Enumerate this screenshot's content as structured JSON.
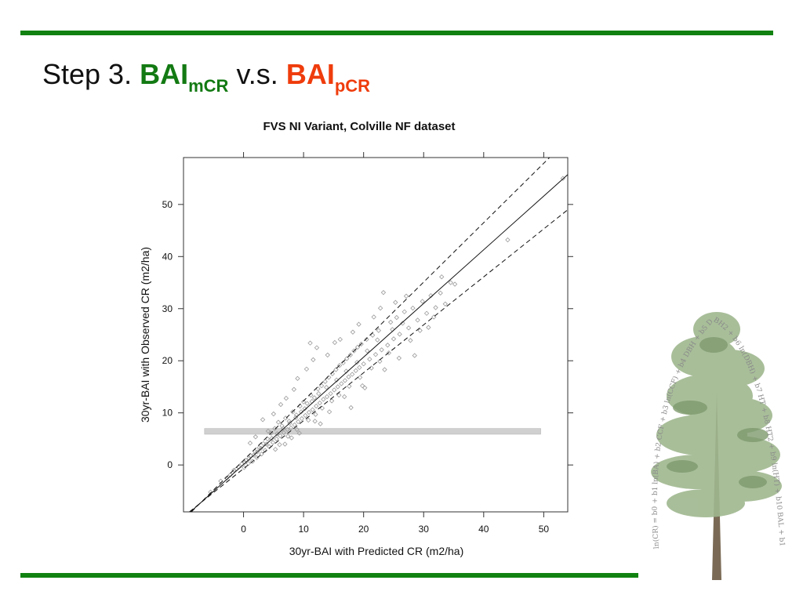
{
  "slide": {
    "title_prefix": "Step 3.",
    "title_term1_main": "BAI",
    "title_term1_sub": "mCR",
    "title_connector": "v.s.",
    "title_term2_main": "BAI",
    "title_term2_sub": "pCR",
    "term1_color": "#137a13",
    "term2_color": "#ef3c0c",
    "accent_bar_color": "#118211"
  },
  "tree_image": {
    "icon": "pine-tree-illustration-icon",
    "formula_text": "ln(CR) = b0 + b1 ln(BA) + b2 CCF + b3 ln(CCF) + b4 DBH + b5 DBH2 + b6 ln(DBH) + b7 HT + b8 HT2 + b9 ln(HT) + b10 BAL + b11 ln(BAL) + b12 ln(DBH/HT)"
  },
  "chart_data": {
    "type": "scatter",
    "title": "FVS NI Variant, Colville NF dataset",
    "xlabel": "30yr-BAI with Predicted CR (m2/ha)",
    "ylabel": "30yr-BAI with Observed CR (m2/ha)",
    "xlim": [
      -10,
      54
    ],
    "ylim": [
      -9,
      59
    ],
    "xticks": [
      0,
      10,
      20,
      30,
      40,
      50
    ],
    "yticks": [
      0,
      10,
      20,
      30,
      40,
      50
    ],
    "grid": false,
    "point_color": "#9a9a9a",
    "fit_line": {
      "slope": 1.03,
      "intercept": 0.1
    },
    "confidence_upper": {
      "intercept": 0.9,
      "slope": 1.14
    },
    "confidence_lower": {
      "intercept": -0.7,
      "slope": 0.92
    },
    "band": {
      "x": [
        -6.5,
        49.5
      ],
      "y": [
        5.9,
        7.0
      ],
      "color": "#d0d0d0"
    },
    "points": [
      [
        -5.5,
        -5.2
      ],
      [
        -3.8,
        -3.1
      ],
      [
        -2.2,
        -1.9
      ],
      [
        -1.6,
        -1.0
      ],
      [
        -0.8,
        -0.4
      ],
      [
        -0.3,
        0.2
      ],
      [
        0.1,
        -0.5
      ],
      [
        0.4,
        0.9
      ],
      [
        0.8,
        0.3
      ],
      [
        1.2,
        1.8
      ],
      [
        1.5,
        0.7
      ],
      [
        1.9,
        2.6
      ],
      [
        2.2,
        1.4
      ],
      [
        2.6,
        3.3
      ],
      [
        3.0,
        2.1
      ],
      [
        3.3,
        4.1
      ],
      [
        3.6,
        2.8
      ],
      [
        4.0,
        5.0
      ],
      [
        4.3,
        3.5
      ],
      [
        4.6,
        6.1
      ],
      [
        4.9,
        4.3
      ],
      [
        5.2,
        7.0
      ],
      [
        5.5,
        5.0
      ],
      [
        5.8,
        8.2
      ],
      [
        6.1,
        5.6
      ],
      [
        6.4,
        7.5
      ],
      [
        6.7,
        6.2
      ],
      [
        7.0,
        9.0
      ],
      [
        7.3,
        6.8
      ],
      [
        7.6,
        8.4
      ],
      [
        7.9,
        7.1
      ],
      [
        8.2,
        10.2
      ],
      [
        8.5,
        7.7
      ],
      [
        8.8,
        9.6
      ],
      [
        9.1,
        8.3
      ],
      [
        9.4,
        11.3
      ],
      [
        9.7,
        8.9
      ],
      [
        10.0,
        12.1
      ],
      [
        10.3,
        9.5
      ],
      [
        10.6,
        11.8
      ],
      [
        10.9,
        10.1
      ],
      [
        11.2,
        13.4
      ],
      [
        11.5,
        10.6
      ],
      [
        11.8,
        12.9
      ],
      [
        12.1,
        11.3
      ],
      [
        12.4,
        14.6
      ],
      [
        12.7,
        11.9
      ],
      [
        13.0,
        15.2
      ],
      [
        13.3,
        12.6
      ],
      [
        13.6,
        16.0
      ],
      [
        13.9,
        13.1
      ],
      [
        14.2,
        16.8
      ],
      [
        14.5,
        13.7
      ],
      [
        14.8,
        17.5
      ],
      [
        15.1,
        14.4
      ],
      [
        15.4,
        18.3
      ],
      [
        15.7,
        15.0
      ],
      [
        16.0,
        19.1
      ],
      [
        16.3,
        15.6
      ],
      [
        16.6,
        19.6
      ],
      [
        16.9,
        16.2
      ],
      [
        17.2,
        20.4
      ],
      [
        17.5,
        16.9
      ],
      [
        17.8,
        21.1
      ],
      [
        18.1,
        17.4
      ],
      [
        18.4,
        21.9
      ],
      [
        18.7,
        18.1
      ],
      [
        19.0,
        22.6
      ],
      [
        19.3,
        18.7
      ],
      [
        19.6,
        23.2
      ],
      [
        20.0,
        19.4
      ],
      [
        20.5,
        24.1
      ],
      [
        21.0,
        20.3
      ],
      [
        21.5,
        24.9
      ],
      [
        22.0,
        21.2
      ],
      [
        22.5,
        25.8
      ],
      [
        23.0,
        22.1
      ],
      [
        23.3,
        33.1
      ],
      [
        24.0,
        23.0
      ],
      [
        24.5,
        27.4
      ],
      [
        25.0,
        24.2
      ],
      [
        25.5,
        28.3
      ],
      [
        26.0,
        25.1
      ],
      [
        26.8,
        29.4
      ],
      [
        27.5,
        26.3
      ],
      [
        28.2,
        30.1
      ],
      [
        29.0,
        27.8
      ],
      [
        29.8,
        31.4
      ],
      [
        30.5,
        29.1
      ],
      [
        31.2,
        32.5
      ],
      [
        32.0,
        30.2
      ],
      [
        33.0,
        36.1
      ],
      [
        34.5,
        35.0
      ],
      [
        35.2,
        34.7
      ],
      [
        30.8,
        26.4
      ],
      [
        28.5,
        21.0
      ],
      [
        20.2,
        14.8
      ],
      [
        17.9,
        11.0
      ],
      [
        12.8,
        7.9
      ],
      [
        9.3,
        6.1
      ],
      [
        4.1,
        6.5
      ],
      [
        5.0,
        9.8
      ],
      [
        6.2,
        11.6
      ],
      [
        7.1,
        12.8
      ],
      [
        8.4,
        14.5
      ],
      [
        9.0,
        16.6
      ],
      [
        10.5,
        18.4
      ],
      [
        11.6,
        20.2
      ],
      [
        12.2,
        22.5
      ],
      [
        11.1,
        23.4
      ],
      [
        14.0,
        21.1
      ],
      [
        15.2,
        23.5
      ],
      [
        16.1,
        24.1
      ],
      [
        18.2,
        25.5
      ],
      [
        19.2,
        27.0
      ],
      [
        21.7,
        28.4
      ],
      [
        22.8,
        30.1
      ],
      [
        25.3,
        31.2
      ],
      [
        27.1,
        32.4
      ],
      [
        32.8,
        33.0
      ],
      [
        44.0,
        43.2
      ],
      [
        53.2,
        55.0
      ],
      [
        3.2,
        8.7
      ],
      [
        2.0,
        5.4
      ],
      [
        1.1,
        4.2
      ],
      [
        6.9,
        4.0
      ],
      [
        8.0,
        5.2
      ],
      [
        11.9,
        8.4
      ],
      [
        14.3,
        10.2
      ],
      [
        16.8,
        13.1
      ],
      [
        19.8,
        15.2
      ],
      [
        23.5,
        18.3
      ],
      [
        25.9,
        20.5
      ],
      [
        26.5,
        27.2
      ],
      [
        24.8,
        26.0
      ],
      [
        22.3,
        24.0
      ],
      [
        20.6,
        21.9
      ],
      [
        18.9,
        19.7
      ],
      [
        17.1,
        18.0
      ],
      [
        15.5,
        16.3
      ],
      [
        13.8,
        14.9
      ],
      [
        12.5,
        13.7
      ],
      [
        11.4,
        12.2
      ],
      [
        10.2,
        10.8
      ],
      [
        9.6,
        10.2
      ],
      [
        8.7,
        9.1
      ],
      [
        7.7,
        8.0
      ],
      [
        6.6,
        7.0
      ],
      [
        5.6,
        6.0
      ],
      [
        4.7,
        5.1
      ],
      [
        3.8,
        4.0
      ],
      [
        2.9,
        3.2
      ],
      [
        2.3,
        2.5
      ],
      [
        1.7,
        1.9
      ],
      [
        0.9,
        1.2
      ],
      [
        0.2,
        0.5
      ],
      [
        -1.2,
        -0.8
      ],
      [
        -2.8,
        -2.5
      ],
      [
        5.3,
        3.0
      ],
      [
        6.0,
        3.9
      ],
      [
        7.4,
        5.5
      ],
      [
        8.9,
        6.8
      ],
      [
        10.8,
        8.6
      ],
      [
        12.0,
        9.7
      ],
      [
        13.1,
        10.9
      ],
      [
        14.7,
        12.3
      ],
      [
        15.9,
        13.4
      ],
      [
        17.6,
        15.1
      ],
      [
        19.4,
        16.8
      ],
      [
        21.3,
        18.6
      ],
      [
        22.7,
        19.9
      ],
      [
        24.2,
        21.5
      ],
      [
        27.8,
        23.9
      ],
      [
        29.4,
        25.8
      ],
      [
        31.7,
        28.4
      ],
      [
        33.6,
        30.9
      ]
    ]
  }
}
